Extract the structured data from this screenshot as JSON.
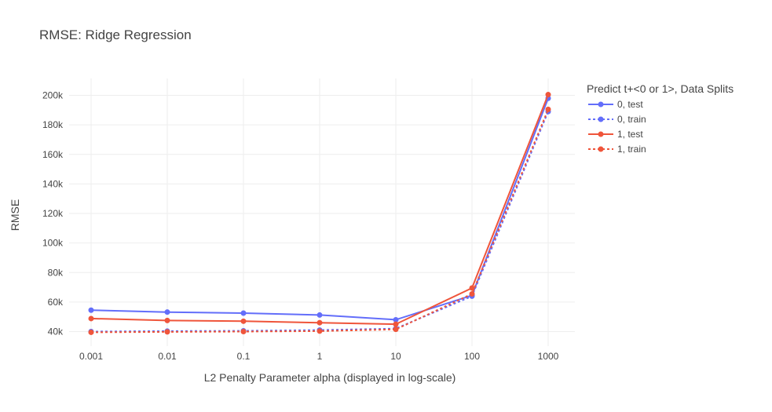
{
  "chart_data": {
    "type": "line",
    "title": "RMSE: Ridge Regression",
    "xlabel": "L2 Penalty Parameter alpha (displayed in log-scale)",
    "ylabel": "RMSE",
    "x_scale": "log",
    "x": [
      0.001,
      0.01,
      0.1,
      1,
      10,
      100,
      1000
    ],
    "x_tick_labels": [
      "0.001",
      "0.01",
      "0.1",
      "1",
      "10",
      "100",
      "1000"
    ],
    "y_ticks": [
      40000,
      60000,
      80000,
      100000,
      120000,
      140000,
      160000,
      180000,
      200000
    ],
    "y_tick_labels": [
      "40k",
      "60k",
      "80k",
      "100k",
      "120k",
      "140k",
      "160k",
      "180k",
      "200k"
    ],
    "ylim": [
      30000,
      210000
    ],
    "grid": true,
    "legend": {
      "title": "Predict t+<0 or 1>, Data Splits",
      "position": "right"
    },
    "series": [
      {
        "name": "0, test",
        "color": "#636efa",
        "dash": "solid",
        "values": [
          54500,
          53200,
          52500,
          51200,
          48000,
          64500,
          198000
        ]
      },
      {
        "name": "0, train",
        "color": "#636efa",
        "dash": "dot",
        "values": [
          40000,
          40300,
          40500,
          41000,
          42000,
          64000,
          189000
        ]
      },
      {
        "name": "1, test",
        "color": "#ef553b",
        "dash": "solid",
        "values": [
          48800,
          47500,
          47000,
          46000,
          45000,
          69500,
          200500
        ]
      },
      {
        "name": "1, train",
        "color": "#ef553b",
        "dash": "dot",
        "values": [
          39500,
          39800,
          40000,
          40300,
          41500,
          65500,
          190500
        ]
      }
    ]
  }
}
